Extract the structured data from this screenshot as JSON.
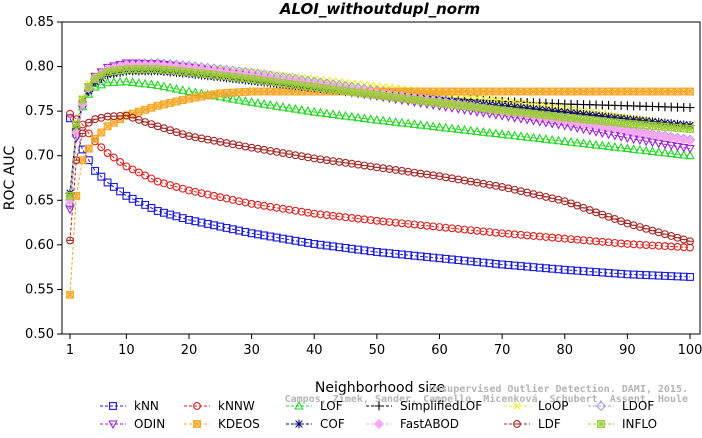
{
  "chart_data": {
    "type": "line",
    "title": "ALOI_withoutdupl_norm",
    "xlabel": "Neighborhood size",
    "ylabel": "ROC AUC",
    "xlim": [
      1,
      100
    ],
    "ylim": [
      0.5,
      0.85
    ],
    "x_ticks": [
      1,
      10,
      20,
      30,
      40,
      50,
      60,
      70,
      80,
      90,
      100
    ],
    "x_tick_labels": [
      "1",
      "10",
      "20",
      "30",
      "40",
      "50",
      "60",
      "70",
      "80",
      "90",
      "100"
    ],
    "y_ticks": [
      0.5,
      0.55,
      0.6,
      0.65,
      0.7,
      0.75,
      0.8,
      0.85
    ],
    "y_tick_labels": [
      "0.50",
      "0.55",
      "0.60",
      "0.65",
      "0.70",
      "0.75",
      "0.80",
      "0.85"
    ],
    "grid": false,
    "legend_position": "bottom",
    "watermark": [
      "Campos, Zimek, Sander, Campello, Micenková, Schubert, Assent, Houle",
      "Unsupervised Outlier Detection. DAMI, 2015."
    ],
    "series": [
      {
        "name": "kNN",
        "color": "#1a1adb",
        "marker": "square",
        "x": [
          1,
          2,
          3,
          4,
          5,
          7,
          10,
          15,
          20,
          30,
          40,
          50,
          60,
          70,
          80,
          90,
          100
        ],
        "y": [
          0.742,
          0.727,
          0.707,
          0.695,
          0.683,
          0.67,
          0.655,
          0.638,
          0.628,
          0.613,
          0.601,
          0.592,
          0.585,
          0.578,
          0.572,
          0.567,
          0.564
        ]
      },
      {
        "name": "kNNW",
        "color": "#e0201e",
        "marker": "circle",
        "x": [
          1,
          2,
          3,
          4,
          5,
          7,
          10,
          15,
          20,
          30,
          40,
          50,
          60,
          70,
          80,
          90,
          100
        ],
        "y": [
          0.747,
          0.741,
          0.735,
          0.725,
          0.716,
          0.703,
          0.688,
          0.671,
          0.661,
          0.646,
          0.635,
          0.627,
          0.62,
          0.613,
          0.607,
          0.601,
          0.597
        ]
      },
      {
        "name": "LOF",
        "color": "#22d822",
        "marker": "triangle-up",
        "x": [
          1,
          2,
          3,
          4,
          5,
          7,
          10,
          15,
          20,
          30,
          40,
          50,
          60,
          70,
          80,
          90,
          100
        ],
        "y": [
          0.655,
          0.731,
          0.755,
          0.769,
          0.777,
          0.782,
          0.783,
          0.779,
          0.772,
          0.76,
          0.749,
          0.74,
          0.732,
          0.724,
          0.716,
          0.708,
          0.7
        ]
      },
      {
        "name": "SimplifiedLOF",
        "color": "#000000",
        "marker": "plus",
        "x": [
          1,
          2,
          3,
          4,
          5,
          7,
          10,
          15,
          20,
          30,
          40,
          50,
          60,
          70,
          80,
          90,
          100
        ],
        "y": [
          0.658,
          0.728,
          0.757,
          0.772,
          0.782,
          0.791,
          0.795,
          0.796,
          0.794,
          0.787,
          0.779,
          0.771,
          0.765,
          0.761,
          0.758,
          0.756,
          0.754
        ]
      },
      {
        "name": "LoOP",
        "color": "#eded1e",
        "marker": "x",
        "x": [
          1,
          2,
          3,
          4,
          5,
          7,
          10,
          15,
          20,
          30,
          40,
          50,
          60,
          70,
          80,
          90,
          100
        ],
        "y": [
          0.655,
          0.732,
          0.764,
          0.781,
          0.79,
          0.797,
          0.801,
          0.802,
          0.8,
          0.794,
          0.786,
          0.778,
          0.77,
          0.762,
          0.753,
          0.743,
          0.733
        ]
      },
      {
        "name": "LDOF",
        "color": "#a0a0e6",
        "marker": "diamond",
        "x": [
          1,
          2,
          3,
          4,
          5,
          7,
          10,
          15,
          20,
          30,
          40,
          50,
          60,
          70,
          80,
          90,
          100
        ],
        "y": [
          0.645,
          0.722,
          0.756,
          0.774,
          0.786,
          0.796,
          0.803,
          0.804,
          0.801,
          0.793,
          0.783,
          0.773,
          0.763,
          0.752,
          0.741,
          0.729,
          0.718
        ]
      },
      {
        "name": "ODIN",
        "color": "#9b22d6",
        "marker": "triangle-down",
        "x": [
          1,
          2,
          3,
          4,
          5,
          7,
          10,
          15,
          20,
          30,
          40,
          50,
          60,
          70,
          80,
          90,
          100
        ],
        "y": [
          0.64,
          0.72,
          0.757,
          0.777,
          0.789,
          0.799,
          0.804,
          0.803,
          0.799,
          0.789,
          0.777,
          0.767,
          0.756,
          0.745,
          0.734,
          0.72,
          0.708
        ]
      },
      {
        "name": "KDEOS",
        "color": "#f5a623",
        "marker": "square-x",
        "x": [
          1,
          2,
          3,
          4,
          5,
          7,
          10,
          15,
          20,
          25,
          30,
          40,
          50,
          60,
          70,
          80,
          90,
          100
        ],
        "y": [
          0.544,
          0.655,
          0.695,
          0.708,
          0.719,
          0.733,
          0.745,
          0.756,
          0.764,
          0.77,
          0.772,
          0.772,
          0.772,
          0.772,
          0.772,
          0.772,
          0.772,
          0.772
        ]
      },
      {
        "name": "COF",
        "color": "#0d0d66",
        "marker": "asterisk",
        "x": [
          1,
          2,
          3,
          4,
          5,
          7,
          10,
          15,
          20,
          30,
          40,
          50,
          60,
          70,
          80,
          90,
          100
        ],
        "y": [
          0.658,
          0.73,
          0.758,
          0.773,
          0.783,
          0.791,
          0.795,
          0.795,
          0.792,
          0.784,
          0.776,
          0.769,
          0.762,
          0.756,
          0.749,
          0.741,
          0.734
        ]
      },
      {
        "name": "FastABOD",
        "color": "#f7a8f0",
        "marker": "diamond-filled",
        "x": [
          1,
          2,
          3,
          4,
          5,
          7,
          10,
          15,
          20,
          30,
          40,
          50,
          60,
          70,
          80,
          90,
          100
        ],
        "y": [
          0.65,
          0.726,
          0.758,
          0.776,
          0.787,
          0.797,
          0.802,
          0.802,
          0.799,
          0.79,
          0.78,
          0.77,
          0.761,
          0.75,
          0.739,
          0.728,
          0.717
        ]
      },
      {
        "name": "LDF",
        "color": "#a52828",
        "marker": "circle-dot",
        "x": [
          1,
          2,
          3,
          4,
          5,
          7,
          10,
          15,
          20,
          30,
          40,
          50,
          60,
          70,
          80,
          90,
          100
        ],
        "y": [
          0.605,
          0.695,
          0.725,
          0.737,
          0.741,
          0.744,
          0.745,
          0.733,
          0.722,
          0.709,
          0.697,
          0.687,
          0.677,
          0.665,
          0.649,
          0.624,
          0.604
        ]
      },
      {
        "name": "INFLO",
        "color": "#9acd32",
        "marker": "square-star",
        "x": [
          1,
          2,
          3,
          4,
          5,
          7,
          10,
          15,
          20,
          30,
          40,
          50,
          60,
          70,
          80,
          90,
          100
        ],
        "y": [
          0.655,
          0.735,
          0.763,
          0.777,
          0.786,
          0.794,
          0.797,
          0.797,
          0.794,
          0.786,
          0.777,
          0.768,
          0.759,
          0.751,
          0.743,
          0.736,
          0.73
        ]
      }
    ]
  }
}
